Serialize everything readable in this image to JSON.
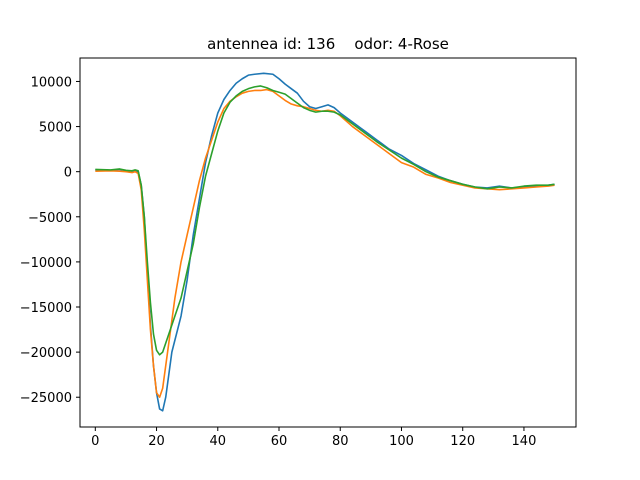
{
  "chart_data": {
    "type": "line",
    "title": "antennea id: 136    odor: 4-Rose",
    "xlabel": "",
    "ylabel": "",
    "xlim": [
      -5,
      157
    ],
    "ylim": [
      -28300,
      12600
    ],
    "grid": false,
    "x_ticks": [
      0,
      20,
      40,
      60,
      80,
      100,
      120,
      140
    ],
    "y_ticks": [
      10000,
      5000,
      0,
      -5000,
      -10000,
      -15000,
      -20000,
      -25000
    ],
    "colors": [
      "#1f77b4",
      "#ff7f0e",
      "#2ca02c"
    ],
    "series": [
      {
        "points": [
          [
            0,
            200
          ],
          [
            5,
            150
          ],
          [
            8,
            250
          ],
          [
            10,
            100
          ],
          [
            12,
            50
          ],
          [
            13,
            150
          ],
          [
            14,
            0
          ],
          [
            15,
            -1500
          ],
          [
            16,
            -5000
          ],
          [
            17,
            -11000
          ],
          [
            18,
            -17000
          ],
          [
            19,
            -21500
          ],
          [
            20,
            -24500
          ],
          [
            21,
            -26300
          ],
          [
            22,
            -26500
          ],
          [
            23,
            -25000
          ],
          [
            25,
            -20000
          ],
          [
            28,
            -16000
          ],
          [
            30,
            -12000
          ],
          [
            32,
            -7000
          ],
          [
            34,
            -3000
          ],
          [
            36,
            1000
          ],
          [
            38,
            4000
          ],
          [
            40,
            6500
          ],
          [
            42,
            8000
          ],
          [
            44,
            9000
          ],
          [
            46,
            9800
          ],
          [
            48,
            10300
          ],
          [
            50,
            10700
          ],
          [
            52,
            10800
          ],
          [
            55,
            10900
          ],
          [
            58,
            10800
          ],
          [
            60,
            10300
          ],
          [
            62,
            9700
          ],
          [
            64,
            9200
          ],
          [
            66,
            8700
          ],
          [
            68,
            7800
          ],
          [
            70,
            7200
          ],
          [
            72,
            7000
          ],
          [
            74,
            7200
          ],
          [
            76,
            7400
          ],
          [
            78,
            7100
          ],
          [
            80,
            6500
          ],
          [
            84,
            5500
          ],
          [
            88,
            4500
          ],
          [
            92,
            3500
          ],
          [
            96,
            2500
          ],
          [
            100,
            1800
          ],
          [
            104,
            900
          ],
          [
            108,
            200
          ],
          [
            112,
            -500
          ],
          [
            116,
            -1000
          ],
          [
            120,
            -1400
          ],
          [
            124,
            -1700
          ],
          [
            128,
            -1800
          ],
          [
            132,
            -1600
          ],
          [
            136,
            -1800
          ],
          [
            140,
            -1700
          ],
          [
            144,
            -1600
          ],
          [
            148,
            -1500
          ],
          [
            150,
            -1400
          ]
        ]
      },
      {
        "points": [
          [
            0,
            50
          ],
          [
            5,
            100
          ],
          [
            8,
            50
          ],
          [
            10,
            0
          ],
          [
            12,
            -100
          ],
          [
            13,
            0
          ],
          [
            14,
            -200
          ],
          [
            15,
            -2000
          ],
          [
            16,
            -6500
          ],
          [
            17,
            -12000
          ],
          [
            18,
            -17500
          ],
          [
            19,
            -21500
          ],
          [
            20,
            -24500
          ],
          [
            21,
            -25000
          ],
          [
            22,
            -24000
          ],
          [
            24,
            -19000
          ],
          [
            26,
            -14000
          ],
          [
            28,
            -10000
          ],
          [
            30,
            -7000
          ],
          [
            32,
            -4000
          ],
          [
            34,
            -1000
          ],
          [
            36,
            1500
          ],
          [
            38,
            3500
          ],
          [
            40,
            5500
          ],
          [
            42,
            7000
          ],
          [
            44,
            7800
          ],
          [
            46,
            8300
          ],
          [
            48,
            8700
          ],
          [
            50,
            8900
          ],
          [
            52,
            9000
          ],
          [
            54,
            9000
          ],
          [
            56,
            9100
          ],
          [
            58,
            8900
          ],
          [
            60,
            8400
          ],
          [
            62,
            7900
          ],
          [
            64,
            7500
          ],
          [
            66,
            7300
          ],
          [
            68,
            7200
          ],
          [
            70,
            7000
          ],
          [
            72,
            6800
          ],
          [
            74,
            6700
          ],
          [
            76,
            6800
          ],
          [
            78,
            6700
          ],
          [
            80,
            6200
          ],
          [
            84,
            5000
          ],
          [
            88,
            4000
          ],
          [
            92,
            3000
          ],
          [
            96,
            2000
          ],
          [
            100,
            1000
          ],
          [
            104,
            500
          ],
          [
            108,
            -300
          ],
          [
            112,
            -700
          ],
          [
            116,
            -1200
          ],
          [
            120,
            -1500
          ],
          [
            124,
            -1800
          ],
          [
            128,
            -1900
          ],
          [
            132,
            -2000
          ],
          [
            136,
            -1900
          ],
          [
            140,
            -1800
          ],
          [
            144,
            -1700
          ],
          [
            148,
            -1600
          ],
          [
            150,
            -1500
          ]
        ]
      },
      {
        "points": [
          [
            0,
            250
          ],
          [
            5,
            200
          ],
          [
            8,
            300
          ],
          [
            10,
            150
          ],
          [
            12,
            100
          ],
          [
            13,
            200
          ],
          [
            14,
            100
          ],
          [
            15,
            -1500
          ],
          [
            16,
            -5000
          ],
          [
            17,
            -10000
          ],
          [
            18,
            -14500
          ],
          [
            19,
            -18000
          ],
          [
            20,
            -19800
          ],
          [
            21,
            -20300
          ],
          [
            22,
            -20000
          ],
          [
            24,
            -18000
          ],
          [
            26,
            -16000
          ],
          [
            28,
            -14000
          ],
          [
            30,
            -11000
          ],
          [
            32,
            -8000
          ],
          [
            34,
            -4000
          ],
          [
            36,
            -500
          ],
          [
            38,
            2000
          ],
          [
            40,
            4500
          ],
          [
            42,
            6500
          ],
          [
            44,
            7700
          ],
          [
            46,
            8400
          ],
          [
            48,
            8900
          ],
          [
            50,
            9200
          ],
          [
            52,
            9400
          ],
          [
            54,
            9500
          ],
          [
            56,
            9300
          ],
          [
            58,
            9000
          ],
          [
            60,
            8800
          ],
          [
            62,
            8600
          ],
          [
            64,
            8100
          ],
          [
            66,
            7600
          ],
          [
            68,
            7100
          ],
          [
            70,
            6800
          ],
          [
            72,
            6600
          ],
          [
            74,
            6700
          ],
          [
            76,
            6700
          ],
          [
            78,
            6600
          ],
          [
            80,
            6300
          ],
          [
            84,
            5300
          ],
          [
            88,
            4300
          ],
          [
            92,
            3300
          ],
          [
            96,
            2400
          ],
          [
            100,
            1500
          ],
          [
            104,
            800
          ],
          [
            108,
            0
          ],
          [
            112,
            -600
          ],
          [
            116,
            -1000
          ],
          [
            120,
            -1400
          ],
          [
            124,
            -1700
          ],
          [
            128,
            -1900
          ],
          [
            132,
            -1700
          ],
          [
            136,
            -1800
          ],
          [
            140,
            -1600
          ],
          [
            144,
            -1500
          ],
          [
            148,
            -1500
          ],
          [
            150,
            -1400
          ]
        ]
      }
    ]
  }
}
